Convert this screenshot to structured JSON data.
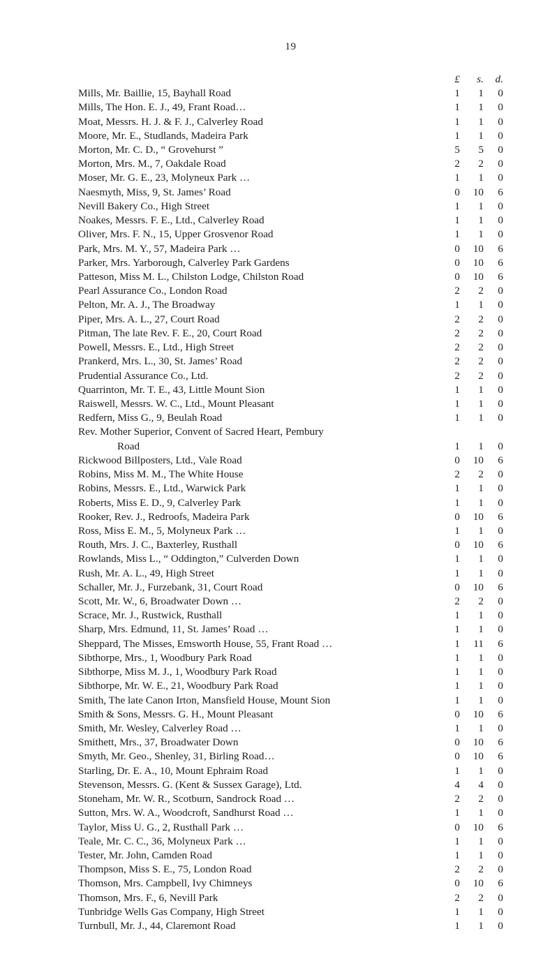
{
  "page_number": "19",
  "currency_header": {
    "l": "£",
    "s": "s.",
    "d": "d."
  },
  "entries": [
    {
      "text": "Mills, Mr. Baillie, 15, Bayhall Road",
      "l": "1",
      "s": "1",
      "d": "0"
    },
    {
      "text": "Mills, The Hon. E. J., 49, Frant Road…",
      "l": "1",
      "s": "1",
      "d": "0"
    },
    {
      "text": "Moat, Messrs. H. J. & F. J., Calverley Road",
      "l": "1",
      "s": "1",
      "d": "0"
    },
    {
      "text": "Moore, Mr. E., Studlands, Madeira Park",
      "l": "1",
      "s": "1",
      "d": "0"
    },
    {
      "text": "Morton, Mr. C. D., “ Grovehurst ”",
      "l": "5",
      "s": "5",
      "d": "0"
    },
    {
      "text": "Morton, Mrs. M., 7, Oakdale Road",
      "l": "2",
      "s": "2",
      "d": "0"
    },
    {
      "text": "Moser, Mr. G. E., 23, Molyneux Park …",
      "l": "1",
      "s": "1",
      "d": "0"
    },
    {
      "text": "Naesmyth, Miss, 9, St. James’ Road",
      "l": "0",
      "s": "10",
      "d": "6"
    },
    {
      "text": "Nevill Bakery Co., High Street",
      "l": "1",
      "s": "1",
      "d": "0"
    },
    {
      "text": "Noakes, Messrs. F. E., Ltd., Calverley Road",
      "l": "1",
      "s": "1",
      "d": "0"
    },
    {
      "text": "Oliver, Mrs. F. N., 15, Upper Grosvenor Road",
      "l": "1",
      "s": "1",
      "d": "0"
    },
    {
      "text": "Park, Mrs. M. Y., 57, Madeira Park …",
      "l": "0",
      "s": "10",
      "d": "6"
    },
    {
      "text": "Parker, Mrs. Yarborough, Calverley Park Gardens",
      "l": "0",
      "s": "10",
      "d": "6"
    },
    {
      "text": "Patteson, Miss M. L., Chilston Lodge, Chilston Road",
      "l": "0",
      "s": "10",
      "d": "6"
    },
    {
      "text": "Pearl Assurance Co., London Road",
      "l": "2",
      "s": "2",
      "d": "0"
    },
    {
      "text": "Pelton, Mr. A. J., The Broadway",
      "l": "1",
      "s": "1",
      "d": "0"
    },
    {
      "text": "Piper, Mrs. A. L., 27, Court Road",
      "l": "2",
      "s": "2",
      "d": "0"
    },
    {
      "text": "Pitman, The late Rev. F. E., 20, Court Road",
      "l": "2",
      "s": "2",
      "d": "0"
    },
    {
      "text": "Powell, Messrs. E., Ltd., High Street",
      "l": "2",
      "s": "2",
      "d": "0"
    },
    {
      "text": "Prankerd, Mrs. L., 30, St. James’ Road",
      "l": "2",
      "s": "2",
      "d": "0"
    },
    {
      "text": "Prudential Assurance Co., Ltd.",
      "l": "2",
      "s": "2",
      "d": "0"
    },
    {
      "text": "Quarrinton, Mr. T. E., 43, Little Mount Sion",
      "l": "1",
      "s": "1",
      "d": "0"
    },
    {
      "text": "Raiswell, Messrs. W. C., Ltd., Mount Pleasant",
      "l": "1",
      "s": "1",
      "d": "0"
    },
    {
      "text": "Redfern, Miss G., 9, Beulah Road",
      "l": "1",
      "s": "1",
      "d": "0"
    },
    {
      "text": "Rev. Mother Superior, Convent of Sacred Heart, Pembury",
      "l": "",
      "s": "",
      "d": "",
      "continued": true
    },
    {
      "text": "Road",
      "l": "1",
      "s": "1",
      "d": "0",
      "indent": true
    },
    {
      "text": "Rickwood Billposters, Ltd., Vale Road",
      "l": "0",
      "s": "10",
      "d": "6"
    },
    {
      "text": "Robins, Miss M. M., The White House",
      "l": "2",
      "s": "2",
      "d": "0"
    },
    {
      "text": "Robins, Messrs. E., Ltd., Warwick Park",
      "l": "1",
      "s": "1",
      "d": "0"
    },
    {
      "text": "Roberts, Miss E. D., 9, Calverley Park",
      "l": "1",
      "s": "1",
      "d": "0"
    },
    {
      "text": "Rooker, Rev. J., Redroofs, Madeira Park",
      "l": "0",
      "s": "10",
      "d": "6"
    },
    {
      "text": "Ross, Miss E. M., 5, Molyneux Park …",
      "l": "1",
      "s": "1",
      "d": "0"
    },
    {
      "text": "Routh, Mrs. J. C., Baxterley, Rusthall",
      "l": "0",
      "s": "10",
      "d": "6"
    },
    {
      "text": "Rowlands, Miss L., “ Oddington,” Culverden Down",
      "l": "1",
      "s": "1",
      "d": "0"
    },
    {
      "text": "Rush, Mr. A. L., 49, High Street",
      "l": "1",
      "s": "1",
      "d": "0"
    },
    {
      "text": "Schaller, Mr. J., Furzebank, 31, Court Road",
      "l": "0",
      "s": "10",
      "d": "6"
    },
    {
      "text": "Scott, Mr. W., 6, Broadwater Down …",
      "l": "2",
      "s": "2",
      "d": "0"
    },
    {
      "text": "Scrace, Mr. J., Rustwick, Rusthall",
      "l": "1",
      "s": "1",
      "d": "0"
    },
    {
      "text": "Sharp, Mrs. Edmund, 11, St. James’ Road …",
      "l": "1",
      "s": "1",
      "d": "0"
    },
    {
      "text": "Sheppard, The Misses, Emsworth House, 55, Frant Road …",
      "l": "1",
      "s": "11",
      "d": "6"
    },
    {
      "text": "Sibthorpe, Mrs., 1, Woodbury Park Road",
      "l": "1",
      "s": "1",
      "d": "0"
    },
    {
      "text": "Sibthorpe, Miss M. J., 1, Woodbury Park Road",
      "l": "1",
      "s": "1",
      "d": "0"
    },
    {
      "text": "Sibthorpe, Mr. W. E., 21, Woodbury Park Road",
      "l": "1",
      "s": "1",
      "d": "0"
    },
    {
      "text": "Smith, The late Canon Irton, Mansfield House, Mount Sion",
      "l": "1",
      "s": "1",
      "d": "0"
    },
    {
      "text": "Smith & Sons, Messrs. G. H., Mount Pleasant",
      "l": "0",
      "s": "10",
      "d": "6"
    },
    {
      "text": "Smith, Mr. Wesley, Calverley Road …",
      "l": "1",
      "s": "1",
      "d": "0"
    },
    {
      "text": "Smithett, Mrs., 37, Broadwater Down",
      "l": "0",
      "s": "10",
      "d": "6"
    },
    {
      "text": "Smyth, Mr. Geo., Shenley, 31, Birling Road…",
      "l": "0",
      "s": "10",
      "d": "6"
    },
    {
      "text": "Starling, Dr. E. A., 10, Mount Ephraim Road",
      "l": "1",
      "s": "1",
      "d": "0"
    },
    {
      "text": "Stevenson, Messrs. G. (Kent & Sussex Garage), Ltd.",
      "l": "4",
      "s": "4",
      "d": "0"
    },
    {
      "text": "Stoneham, Mr. W. R., Scotburn, Sandrock Road …",
      "l": "2",
      "s": "2",
      "d": "0"
    },
    {
      "text": "Sutton, Mrs. W. A., Woodcroft, Sandhurst Road …",
      "l": "1",
      "s": "1",
      "d": "0"
    },
    {
      "text": "Taylor, Miss U. G., 2, Rusthall Park …",
      "l": "0",
      "s": "10",
      "d": "6"
    },
    {
      "text": "Teale, Mr. C. C., 36, Molyneux Park …",
      "l": "1",
      "s": "1",
      "d": "0"
    },
    {
      "text": "Tester, Mr. John, Camden Road",
      "l": "1",
      "s": "1",
      "d": "0"
    },
    {
      "text": "Thompson, Miss S. E., 75, London Road",
      "l": "2",
      "s": "2",
      "d": "0"
    },
    {
      "text": "Thomson, Mrs. Campbell, Ivy Chimneys",
      "l": "0",
      "s": "10",
      "d": "6"
    },
    {
      "text": "Thomson, Mrs. F., 6, Nevill Park",
      "l": "2",
      "s": "2",
      "d": "0"
    },
    {
      "text": "Tunbridge Wells Gas Company, High Street",
      "l": "1",
      "s": "1",
      "d": "0"
    },
    {
      "text": "Turnbull, Mr. J., 44, Claremont Road",
      "l": "1",
      "s": "1",
      "d": "0"
    }
  ]
}
